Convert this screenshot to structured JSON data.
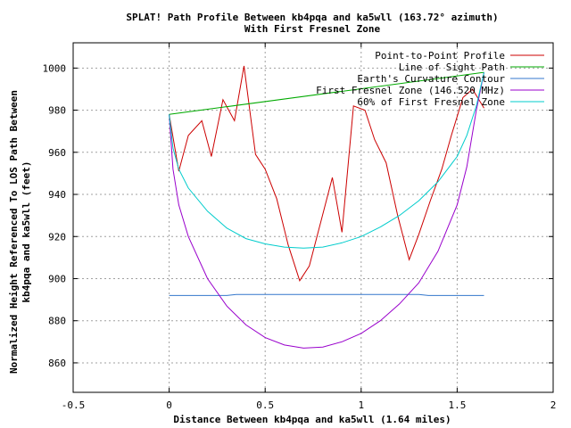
{
  "chart_data": {
    "type": "line",
    "title": "SPLAT! Path Profile Between kb4pqa and ka5wll (163.72° azimuth)",
    "subtitle": "With First Fresnel Zone",
    "xlabel": "Distance Between kb4pqa and ka5wll (1.64 miles)",
    "ylabel_line1": "Normalized Height Referenced To LOS Path Between",
    "ylabel_line2": "kb4pqa and ka5wll (feet)",
    "xlim": [
      -0.5,
      2
    ],
    "ylim": [
      846,
      1012
    ],
    "x_ticks": [
      -0.5,
      0,
      0.5,
      1,
      1.5,
      2
    ],
    "x_tick_labels": [
      "-0.5",
      "0",
      "0.5",
      "1",
      "1.5",
      "2"
    ],
    "y_ticks": [
      860,
      880,
      900,
      920,
      940,
      960,
      980,
      1000
    ],
    "y_tick_labels": [
      "860",
      "880",
      "900",
      "920",
      "940",
      "960",
      "980",
      "1000"
    ],
    "grid": true,
    "legend_position": "top-right",
    "series": [
      {
        "name": "Point-to-Point Profile",
        "color": "#cc0000",
        "points": [
          [
            0,
            978
          ],
          [
            0.05,
            951
          ],
          [
            0.1,
            968
          ],
          [
            0.17,
            975
          ],
          [
            0.22,
            958
          ],
          [
            0.28,
            985
          ],
          [
            0.34,
            975
          ],
          [
            0.39,
            1001
          ],
          [
            0.45,
            959
          ],
          [
            0.5,
            952
          ],
          [
            0.56,
            938
          ],
          [
            0.62,
            916
          ],
          [
            0.68,
            899
          ],
          [
            0.73,
            906
          ],
          [
            0.79,
            927
          ],
          [
            0.85,
            948
          ],
          [
            0.9,
            922
          ],
          [
            0.96,
            982
          ],
          [
            1.02,
            980
          ],
          [
            1.07,
            966
          ],
          [
            1.13,
            955
          ],
          [
            1.19,
            930
          ],
          [
            1.25,
            909
          ],
          [
            1.3,
            921
          ],
          [
            1.36,
            937
          ],
          [
            1.42,
            952
          ],
          [
            1.47,
            968
          ],
          [
            1.53,
            986
          ],
          [
            1.58,
            990
          ],
          [
            1.64,
            981
          ]
        ]
      },
      {
        "name": "Line of Sight Path",
        "color": "#00aa00",
        "points": [
          [
            0,
            978
          ],
          [
            1.64,
            998
          ]
        ]
      },
      {
        "name": "Earth's Curvature Contour",
        "color": "#3377cc",
        "points": [
          [
            0,
            892
          ],
          [
            0.3,
            892
          ],
          [
            0.35,
            892.5
          ],
          [
            1.3,
            892.5
          ],
          [
            1.35,
            892
          ],
          [
            1.64,
            892
          ]
        ]
      },
      {
        "name": "First Fresnel Zone (146.520 MHz)",
        "color": "#9900cc",
        "points": [
          [
            0,
            978
          ],
          [
            0.02,
            952
          ],
          [
            0.05,
            935
          ],
          [
            0.1,
            920
          ],
          [
            0.2,
            900
          ],
          [
            0.3,
            887
          ],
          [
            0.4,
            878
          ],
          [
            0.5,
            872
          ],
          [
            0.6,
            868.5
          ],
          [
            0.7,
            867
          ],
          [
            0.8,
            867.5
          ],
          [
            0.9,
            870
          ],
          [
            1.0,
            874
          ],
          [
            1.1,
            880
          ],
          [
            1.2,
            888
          ],
          [
            1.3,
            898
          ],
          [
            1.4,
            913
          ],
          [
            1.5,
            935
          ],
          [
            1.55,
            953
          ],
          [
            1.6,
            980
          ],
          [
            1.64,
            998
          ]
        ]
      },
      {
        "name": "60% of First Fresnel Zone",
        "color": "#00cccc",
        "points": [
          [
            0,
            978
          ],
          [
            0.02,
            962
          ],
          [
            0.05,
            952
          ],
          [
            0.1,
            943
          ],
          [
            0.2,
            932
          ],
          [
            0.3,
            924
          ],
          [
            0.4,
            919
          ],
          [
            0.5,
            916.5
          ],
          [
            0.6,
            915
          ],
          [
            0.7,
            914.5
          ],
          [
            0.8,
            915
          ],
          [
            0.9,
            917
          ],
          [
            1.0,
            920
          ],
          [
            1.1,
            924.5
          ],
          [
            1.2,
            930
          ],
          [
            1.3,
            937
          ],
          [
            1.4,
            946
          ],
          [
            1.5,
            958
          ],
          [
            1.55,
            968
          ],
          [
            1.6,
            982
          ],
          [
            1.64,
            998
          ]
        ]
      }
    ]
  }
}
